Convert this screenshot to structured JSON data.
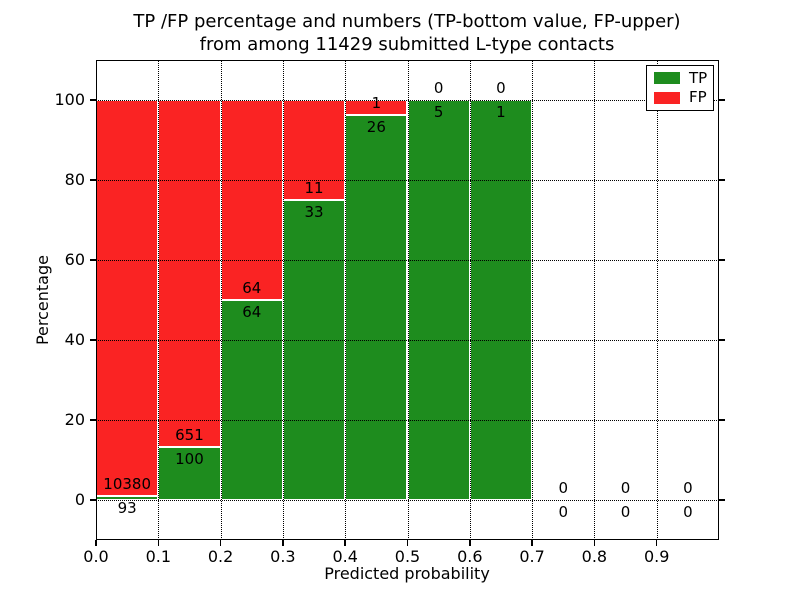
{
  "figure": {
    "title_line1": "TP /FP percentage and numbers (TP-bottom value, FP-upper)",
    "title_line2": "from among 11429 submitted L-type contacts",
    "xlabel": "Predicted probability",
    "ylabel": "Percentage"
  },
  "legend": {
    "items": [
      {
        "label": "TP",
        "color": "#1e8c1e"
      },
      {
        "label": "FP",
        "color": "#fa2323"
      }
    ]
  },
  "axes": {
    "xticklabels": [
      "0.0",
      "0.1",
      "0.2",
      "0.3",
      "0.4",
      "0.5",
      "0.6",
      "0.7",
      "0.8",
      "0.9"
    ],
    "yticklabels": [
      "0",
      "20",
      "40",
      "60",
      "80",
      "100"
    ],
    "xlim": [
      0,
      1
    ],
    "ylim": [
      -10,
      110
    ],
    "grid": "dotted black"
  },
  "chart_data": {
    "type": "bar",
    "stacked": true,
    "title": "TP /FP percentage and numbers (TP-bottom value, FP-upper) from among 11429 submitted L-type contacts",
    "xlabel": "Predicted probability",
    "ylabel": "Percentage",
    "total_submitted": 11429,
    "note": "Each 0.1-wide probability bin is a 100%-stacked bar: green bottom segment = TP share, red upper segment = FP share. Numeric labels are raw counts: TP count below the segment boundary, FP count above it. Bins 0.7-1.0 have no contacts (0/0).",
    "legend_position": "upper right",
    "colors": {
      "tp": "#1e8c1e",
      "fp": "#fa2323"
    },
    "bins": [
      {
        "x0": 0.0,
        "x1": 0.1,
        "tp": 93,
        "fp": 10380
      },
      {
        "x0": 0.1,
        "x1": 0.2,
        "tp": 100,
        "fp": 651
      },
      {
        "x0": 0.2,
        "x1": 0.3,
        "tp": 64,
        "fp": 64
      },
      {
        "x0": 0.3,
        "x1": 0.4,
        "tp": 33,
        "fp": 11
      },
      {
        "x0": 0.4,
        "x1": 0.5,
        "tp": 26,
        "fp": 1
      },
      {
        "x0": 0.5,
        "x1": 0.6,
        "tp": 5,
        "fp": 0
      },
      {
        "x0": 0.6,
        "x1": 0.7,
        "tp": 1,
        "fp": 0
      },
      {
        "x0": 0.7,
        "x1": 0.8,
        "tp": 0,
        "fp": 0
      },
      {
        "x0": 0.8,
        "x1": 0.9,
        "tp": 0,
        "fp": 0
      },
      {
        "x0": 0.9,
        "x1": 1.0,
        "tp": 0,
        "fp": 0
      }
    ]
  }
}
